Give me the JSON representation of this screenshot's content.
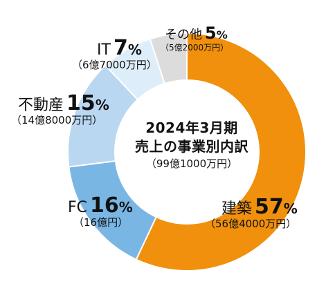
{
  "chart_data": {
    "type": "donut",
    "title_lines": [
      "2024年3月期",
      "売上の事業別内訳"
    ],
    "total_label": "（99億1000万円）",
    "slices": [
      {
        "name": "建築",
        "value": 57,
        "pct_label": "57",
        "amount": "（56億4000万円）",
        "color": "#f0900c"
      },
      {
        "name": "FC",
        "value": 16,
        "pct_label": "16",
        "amount": "（16億円）",
        "color": "#7ab6e4"
      },
      {
        "name": "不動産",
        "value": 15,
        "pct_label": "15",
        "amount": "（14億8000万円）",
        "color": "#b9d7f1"
      },
      {
        "name": "IT",
        "value": 7,
        "pct_label": "7",
        "amount": "（6億7000万円）",
        "color": "#ddeefa"
      },
      {
        "name": "その他",
        "value": 5,
        "pct_label": "5",
        "amount": "（5億2000万円）",
        "color": "#dcdcdc"
      }
    ],
    "percent_unit": "%"
  }
}
